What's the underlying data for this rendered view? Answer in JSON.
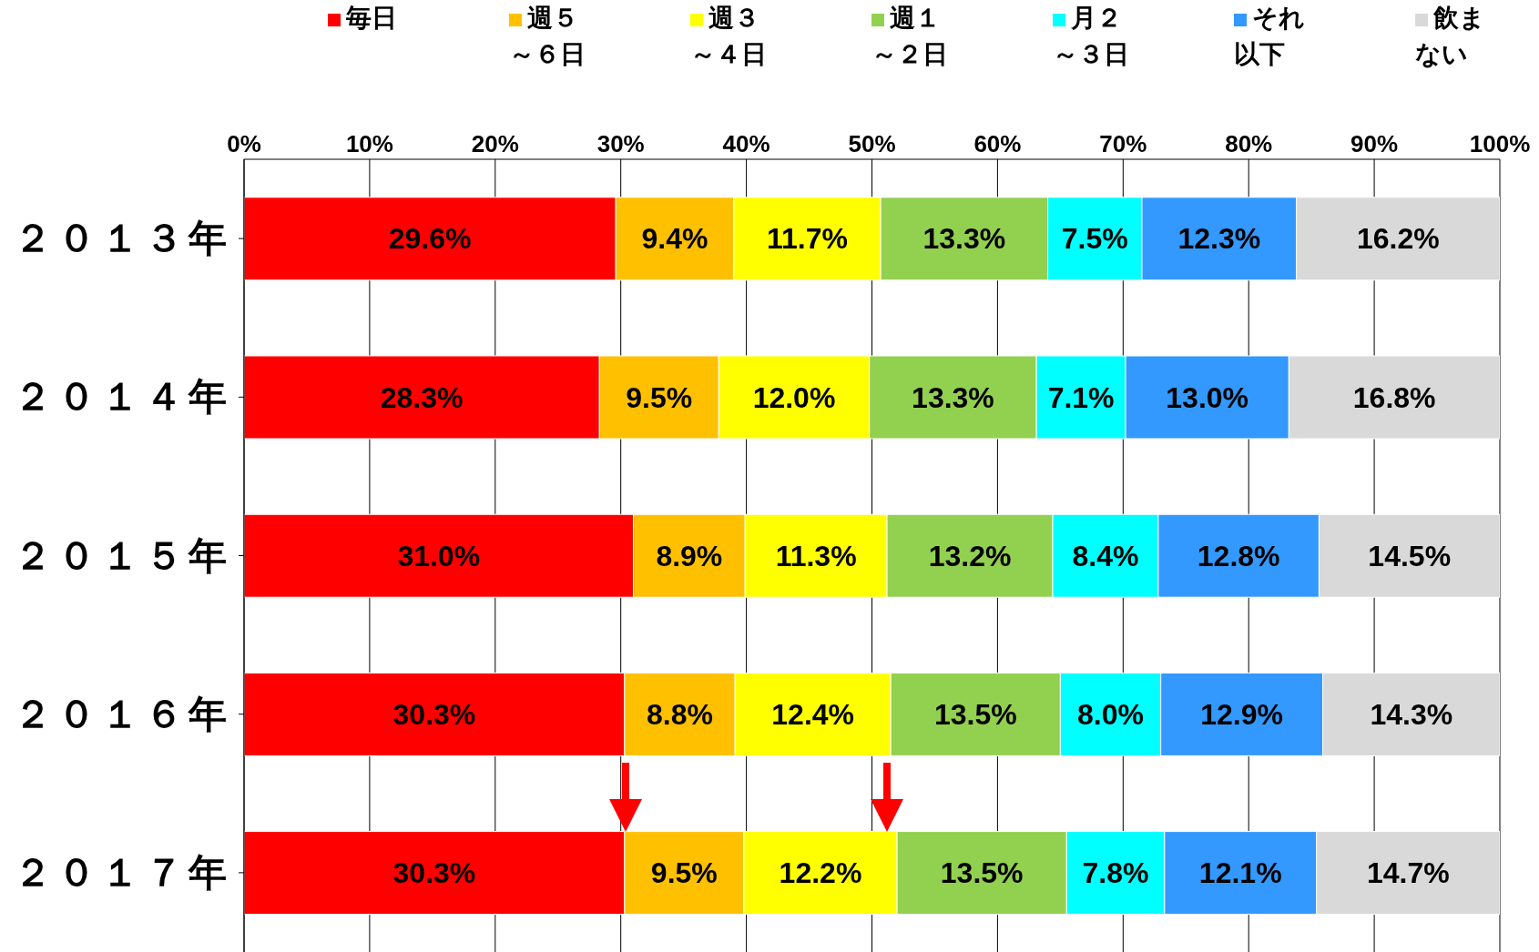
{
  "chart_data": {
    "type": "bar",
    "orientation": "horizontal",
    "stacked": true,
    "categories": [
      "２０１３年",
      "２０１４年",
      "２０１５年",
      "２０１６年",
      "２０１７年"
    ],
    "series": [
      {
        "name": "毎日",
        "color": "#ff0000",
        "values": [
          29.6,
          28.3,
          31.0,
          30.3,
          30.3
        ],
        "value_labels": [
          "29.6%",
          "28.3%",
          "31.0%",
          "30.3%",
          "30.3%"
        ]
      },
      {
        "name": "週５～６日",
        "color": "#ffc000",
        "values": [
          9.4,
          9.5,
          8.9,
          8.8,
          9.5
        ],
        "value_labels": [
          "9.4%",
          "9.5%",
          "8.9%",
          "8.8%",
          "9.5%"
        ]
      },
      {
        "name": "週３～４日",
        "color": "#ffff00",
        "values": [
          11.7,
          12.0,
          11.3,
          12.4,
          12.2
        ],
        "value_labels": [
          "11.7%",
          "12.0%",
          "11.3%",
          "12.4%",
          "12.2%"
        ]
      },
      {
        "name": "週１～２日",
        "color": "#92d050",
        "values": [
          13.3,
          13.3,
          13.2,
          13.5,
          13.5
        ],
        "value_labels": [
          "13.3%",
          "13.3%",
          "13.2%",
          "13.5%",
          "13.5%"
        ]
      },
      {
        "name": "月２～３日",
        "color": "#00ffff",
        "values": [
          7.5,
          7.1,
          8.4,
          8.0,
          7.8
        ],
        "value_labels": [
          "7.5%",
          "7.1%",
          "8.4%",
          "8.0%",
          "7.8%"
        ]
      },
      {
        "name": "それ以下",
        "color": "#3399ff",
        "values": [
          12.3,
          13.0,
          12.8,
          12.9,
          12.1
        ],
        "value_labels": [
          "12.3%",
          "13.0%",
          "12.8%",
          "12.9%",
          "12.1%"
        ]
      },
      {
        "name": "飲まない",
        "color": "#d9d9d9",
        "values": [
          16.2,
          16.8,
          14.5,
          14.3,
          14.7
        ],
        "value_labels": [
          "16.2%",
          "16.8%",
          "14.5%",
          "14.3%",
          "14.7%"
        ]
      }
    ],
    "xlim": [
      0,
      100
    ],
    "xticks": [
      {
        "value": 0,
        "label": "0%"
      },
      {
        "value": 10,
        "label": "10%"
      },
      {
        "value": 20,
        "label": "20%"
      },
      {
        "value": 30,
        "label": "30%"
      },
      {
        "value": 40,
        "label": "40%"
      },
      {
        "value": 50,
        "label": "50%"
      },
      {
        "value": 60,
        "label": "60%"
      },
      {
        "value": 70,
        "label": "70%"
      },
      {
        "value": 80,
        "label": "80%"
      },
      {
        "value": 90,
        "label": "90%"
      },
      {
        "value": 100,
        "label": "100%"
      }
    ],
    "grid": "x",
    "legend": "top"
  }
}
